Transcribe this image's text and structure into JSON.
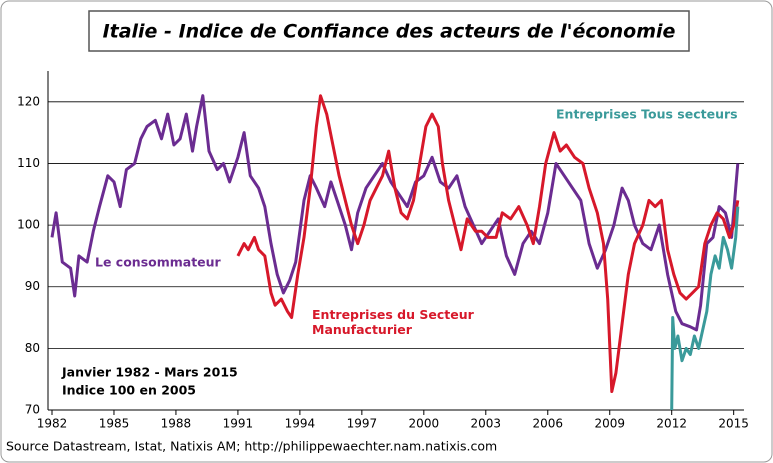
{
  "chart_data": {
    "type": "line",
    "title": "Italie - Indice de Confiance des acteurs de l'économie",
    "source": "Source Datastream, Istat, Natixis AM; http://philippewaechter.nam.natixis.com",
    "notes": [
      "Janvier 1982 - Mars 2015",
      "Indice 100 en 2005"
    ],
    "xlim": [
      1982,
      2015.5
    ],
    "xticks": [
      1982,
      1985,
      1988,
      1991,
      1994,
      1997,
      2000,
      2003,
      2006,
      2009,
      2012,
      2015
    ],
    "ylim": [
      70,
      125
    ],
    "yticks": [
      70,
      80,
      90,
      100,
      110,
      120
    ],
    "grid": true,
    "series": [
      {
        "name": "Le consommateur",
        "color": "#6b2c91",
        "x": [
          1982.0,
          1982.2,
          1982.5,
          1982.9,
          1983.1,
          1983.3,
          1983.7,
          1984.0,
          1984.3,
          1984.7,
          1985.0,
          1985.3,
          1985.6,
          1986.0,
          1986.3,
          1986.6,
          1987.0,
          1987.3,
          1987.6,
          1987.9,
          1988.2,
          1988.5,
          1988.8,
          1989.0,
          1989.3,
          1989.6,
          1990.0,
          1990.3,
          1990.6,
          1991.0,
          1991.3,
          1991.6,
          1992.0,
          1992.3,
          1992.6,
          1992.9,
          1993.2,
          1993.5,
          1993.8,
          1994.2,
          1994.5,
          1994.8,
          1995.2,
          1995.5,
          1995.8,
          1996.2,
          1996.5,
          1996.8,
          1997.2,
          1997.6,
          1998.0,
          1998.4,
          1998.8,
          1999.2,
          1999.6,
          2000.0,
          2000.4,
          2000.8,
          2001.2,
          2001.6,
          2002.0,
          2002.4,
          2002.8,
          2003.2,
          2003.6,
          2004.0,
          2004.4,
          2004.8,
          2005.2,
          2005.6,
          2006.0,
          2006.4,
          2006.8,
          2007.2,
          2007.6,
          2008.0,
          2008.4,
          2008.8,
          2009.2,
          2009.6,
          2009.9,
          2010.2,
          2010.6,
          2011.0,
          2011.4,
          2011.8,
          2012.0,
          2012.2,
          2012.5,
          2012.9,
          2013.2,
          2013.4,
          2013.7,
          2014.0,
          2014.3,
          2014.6,
          2014.9,
          2015.1,
          2015.2
        ],
        "values": [
          98,
          102,
          94,
          93,
          88.5,
          95,
          94,
          99,
          103,
          108,
          107,
          103,
          109,
          110,
          114,
          116,
          117,
          114,
          118,
          113,
          114,
          118,
          112,
          116,
          121,
          112,
          109,
          110,
          107,
          111,
          115,
          108,
          106,
          103,
          97,
          92,
          89,
          91,
          94,
          104,
          108,
          106,
          103,
          107,
          104,
          100,
          96,
          102,
          106,
          108,
          110,
          107,
          105,
          103,
          107,
          108,
          111,
          107,
          106,
          108,
          103,
          100,
          97,
          99,
          101,
          95,
          92,
          97,
          99,
          97,
          102,
          110,
          108,
          106,
          104,
          97,
          93,
          96,
          100,
          106,
          104,
          100,
          97,
          96,
          100,
          92,
          89,
          86,
          84,
          83.5,
          83,
          87,
          97,
          98,
          103,
          102,
          98,
          106,
          110
        ]
      },
      {
        "name": "Entreprises du Secteur Manufacturier",
        "color": "#d7182a",
        "x": [
          1991.0,
          1991.3,
          1991.5,
          1991.8,
          1992.0,
          1992.3,
          1992.6,
          1992.8,
          1993.1,
          1993.4,
          1993.6,
          1993.9,
          1994.2,
          1994.5,
          1994.8,
          1995.0,
          1995.3,
          1995.6,
          1995.9,
          1996.2,
          1996.5,
          1996.8,
          1997.1,
          1997.4,
          1997.7,
          1998.0,
          1998.3,
          1998.6,
          1998.9,
          1999.2,
          1999.5,
          1999.8,
          2000.1,
          2000.4,
          2000.7,
          2000.9,
          2001.2,
          2001.5,
          2001.8,
          2002.1,
          2002.5,
          2002.8,
          2003.1,
          2003.5,
          2003.8,
          2004.2,
          2004.6,
          2005.0,
          2005.3,
          2005.6,
          2005.9,
          2006.3,
          2006.6,
          2006.9,
          2007.3,
          2007.7,
          2008.0,
          2008.4,
          2008.7,
          2008.9,
          2009.1,
          2009.3,
          2009.6,
          2009.9,
          2010.2,
          2010.6,
          2010.9,
          2011.2,
          2011.5,
          2011.8,
          2012.1,
          2012.4,
          2012.7,
          2013.0,
          2013.3,
          2013.6,
          2013.9,
          2014.2,
          2014.5,
          2014.8,
          2015.0,
          2015.2
        ],
        "values": [
          95,
          97,
          96,
          98,
          96,
          95,
          89,
          87,
          88,
          86,
          85,
          92,
          98,
          106,
          116,
          121,
          118,
          113,
          108,
          104,
          100,
          97,
          100,
          104,
          106,
          108,
          112,
          106,
          102,
          101,
          104,
          110,
          116,
          118,
          116,
          110,
          104,
          100,
          96,
          101,
          99,
          99,
          98,
          98,
          102,
          101,
          103,
          100,
          97,
          103,
          110,
          115,
          112,
          113,
          111,
          110,
          106,
          102,
          97,
          88,
          73,
          76,
          84,
          92,
          97,
          100,
          104,
          103,
          104,
          96,
          92,
          89,
          88,
          89,
          90,
          97,
          100,
          102,
          101,
          98,
          100,
          104
        ]
      },
      {
        "name": "Entreprises Tous secteurs",
        "color": "#3a9a9a",
        "x": [
          2012.0,
          2012.05,
          2012.15,
          2012.3,
          2012.5,
          2012.7,
          2012.9,
          2013.1,
          2013.3,
          2013.5,
          2013.7,
          2013.9,
          2014.1,
          2014.3,
          2014.5,
          2014.7,
          2014.9,
          2015.1,
          2015.2
        ],
        "values": [
          70,
          85,
          80,
          82,
          78,
          80,
          79,
          82,
          80,
          83,
          86,
          92,
          95,
          93,
          98,
          96,
          93,
          98,
          103
        ]
      }
    ]
  }
}
